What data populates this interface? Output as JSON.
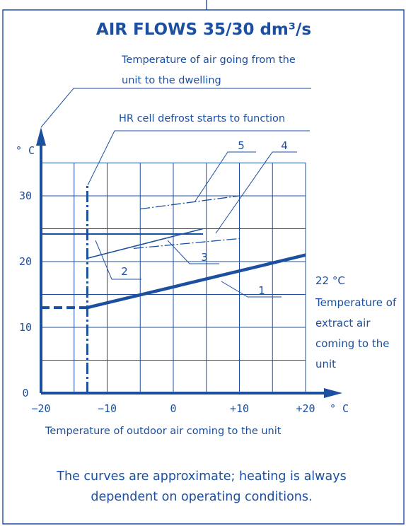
{
  "chart_data": {
    "type": "line",
    "title": "AIR FLOWS 35/30 dm³/s",
    "xlabel": "Temperature of outdoor air coming to the unit",
    "ylabel": "",
    "x_unit": "° C",
    "y_unit": "° C",
    "xlim": [
      -20,
      20
    ],
    "ylim": [
      0,
      35
    ],
    "x_ticks": [
      -20,
      -10,
      0,
      10,
      20
    ],
    "x_tick_labels": [
      "−20",
      "−10",
      "0",
      "+10",
      "+20"
    ],
    "y_ticks": [
      0,
      10,
      20,
      30
    ],
    "y_tick_labels": [
      "0",
      "10",
      "20",
      "30"
    ],
    "grid": true,
    "series": [
      {
        "name": "1",
        "points": [
          [
            -13,
            13
          ],
          [
            20,
            21
          ]
        ]
      },
      {
        "name": "2",
        "points": [
          [
            -20,
            24.2
          ],
          [
            4.5,
            24.2
          ]
        ]
      },
      {
        "name": "3",
        "points": [
          [
            -13,
            20.5
          ],
          [
            4.5,
            25
          ]
        ]
      },
      {
        "name": "4",
        "points": [
          [
            -6,
            22
          ],
          [
            10,
            23.5
          ]
        ]
      },
      {
        "name": "5",
        "points": [
          [
            -5,
            28
          ],
          [
            10,
            30
          ]
        ]
      }
    ],
    "dashed_segment": {
      "points": [
        [
          -20,
          13
        ],
        [
          -13,
          13
        ]
      ]
    },
    "defrost_x": -13,
    "annotations": {
      "supply_air": "Temperature of air going from the unit to the dwelling",
      "defrost": "HR cell defrost starts to function",
      "extract_temp": "22 °C",
      "extract_lines": [
        "Temperature of",
        "extract air",
        "coming to the",
        "unit"
      ]
    },
    "note_lines": [
      "The curves are approximate; heating is always",
      "dependent on operating conditions."
    ]
  },
  "colors": {
    "ink": "#1c4fa0",
    "background": "#ffffff"
  }
}
